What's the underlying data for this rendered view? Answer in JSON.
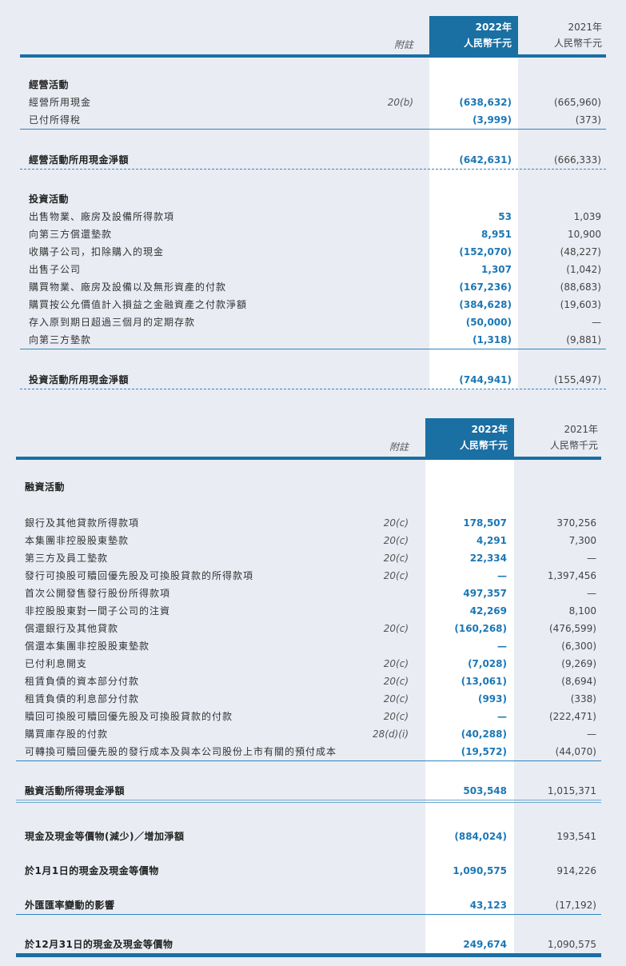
{
  "tables": [
    {
      "header": {
        "note": "附註",
        "year_current": "2022年",
        "unit_current": "人民幣千元",
        "year_prior": "2021年",
        "unit_prior": "人民幣千元"
      },
      "rows": [
        {
          "type": "section",
          "label": "經營活動"
        },
        {
          "type": "item",
          "label": "經營所用現金",
          "note": "20(b)",
          "v2022": "(638,632)",
          "v2021": "(665,960)"
        },
        {
          "type": "item",
          "label": "已付所得稅",
          "note": "",
          "v2022": "(3,999)",
          "v2021": "(373)",
          "rule": "solid"
        },
        {
          "type": "total",
          "label": "經營活動所用現金淨額",
          "v2022": "(642,631)",
          "v2021": "(666,333)",
          "rule": "dashed"
        },
        {
          "type": "section",
          "label": "投資活動"
        },
        {
          "type": "item",
          "label": "出售物業、廠房及設備所得款項",
          "v2022": "53",
          "v2021": "1,039"
        },
        {
          "type": "item",
          "label": "向第三方償還墊款",
          "v2022": "8,951",
          "v2021": "10,900"
        },
        {
          "type": "item",
          "label": "收購子公司，扣除購入的現金",
          "v2022": "(152,070)",
          "v2021": "(48,227)"
        },
        {
          "type": "item",
          "label": "出售子公司",
          "v2022": "1,307",
          "v2021": "(1,042)"
        },
        {
          "type": "item",
          "label": "購買物業、廠房及設備以及無形資產的付款",
          "v2022": "(167,236)",
          "v2021": "(88,683)"
        },
        {
          "type": "item",
          "label": "購買按公允價值計入損益之金融資產之付款淨額",
          "v2022": "(384,628)",
          "v2021": "(19,603)"
        },
        {
          "type": "item",
          "label": "存入原到期日超過三個月的定期存款",
          "v2022": "(50,000)",
          "v2021": "—"
        },
        {
          "type": "item",
          "label": "向第三方墊款",
          "v2022": "(1,318)",
          "v2021": "(9,881)",
          "rule": "solid"
        },
        {
          "type": "total",
          "label": "投資活動所用現金淨額",
          "v2022": "(744,941)",
          "v2021": "(155,497)",
          "rule": "dashed"
        }
      ]
    },
    {
      "header": {
        "note": "附註",
        "year_current": "2022年",
        "unit_current": "人民幣千元",
        "year_prior": "2021年",
        "unit_prior": "人民幣千元"
      },
      "rows": [
        {
          "type": "section",
          "label": "融資活動"
        },
        {
          "type": "item",
          "label": "銀行及其他貸款所得款項",
          "note": "20(c)",
          "v2022": "178,507",
          "v2021": "370,256"
        },
        {
          "type": "item",
          "label": "本集團非控股股東墊款",
          "note": "20(c)",
          "v2022": "4,291",
          "v2021": "7,300"
        },
        {
          "type": "item",
          "label": "第三方及員工墊款",
          "note": "20(c)",
          "v2022": "22,334",
          "v2021": "—"
        },
        {
          "type": "item",
          "label": "發行可換股可贖回優先股及可換股貸款的所得款項",
          "note": "20(c)",
          "v2022": "—",
          "v2021": "1,397,456"
        },
        {
          "type": "item",
          "label": "首次公開發售發行股份所得款項",
          "v2022": "497,357",
          "v2021": "—"
        },
        {
          "type": "item",
          "label": "非控股股東對一間子公司的注資",
          "v2022": "42,269",
          "v2021": "8,100"
        },
        {
          "type": "item",
          "label": "償還銀行及其他貸款",
          "note": "20(c)",
          "v2022": "(160,268)",
          "v2021": "(476,599)"
        },
        {
          "type": "item",
          "label": "償還本集團非控股股東墊款",
          "v2022": "—",
          "v2021": "(6,300)"
        },
        {
          "type": "item",
          "label": "已付利息開支",
          "note": "20(c)",
          "v2022": "(7,028)",
          "v2021": "(9,269)"
        },
        {
          "type": "item",
          "label": "租賃負債的資本部分付款",
          "note": "20(c)",
          "v2022": "(13,061)",
          "v2021": "(8,694)"
        },
        {
          "type": "item",
          "label": "租賃負債的利息部分付款",
          "note": "20(c)",
          "v2022": "(993)",
          "v2021": "(338)"
        },
        {
          "type": "item",
          "label": "贖回可換股可贖回優先股及可換股貸款的付款",
          "note": "20(c)",
          "v2022": "—",
          "v2021": "(222,471)"
        },
        {
          "type": "item",
          "label": "購買庫存股的付款",
          "note": "28(d)(i)",
          "v2022": "(40,288)",
          "v2021": "—"
        },
        {
          "type": "item",
          "label": "可轉換可贖回優先股的發行成本及與本公司股份上市有關的預付成本",
          "v2022": "(19,572)",
          "v2021": "(44,070)",
          "rule": "solid"
        },
        {
          "type": "total",
          "label": "融資活動所得現金淨額",
          "v2022": "503,548",
          "v2021": "1,015,371",
          "rule": "double-dashed"
        },
        {
          "type": "total",
          "label": "現金及現金等價物(減少)／增加淨額",
          "v2022": "(884,024)",
          "v2021": "193,541"
        },
        {
          "type": "total",
          "label": "於1月1日的現金及現金等價物",
          "v2022": "1,090,575",
          "v2021": "914,226"
        },
        {
          "type": "total",
          "label": "外匯匯率變動的影響",
          "v2022": "43,123",
          "v2021": "(17,192)",
          "rule": "solid"
        },
        {
          "type": "total",
          "label": "於12月31日的現金及現金等價物",
          "v2022": "249,674",
          "v2021": "1,090,575",
          "rule": "thick"
        }
      ]
    }
  ]
}
